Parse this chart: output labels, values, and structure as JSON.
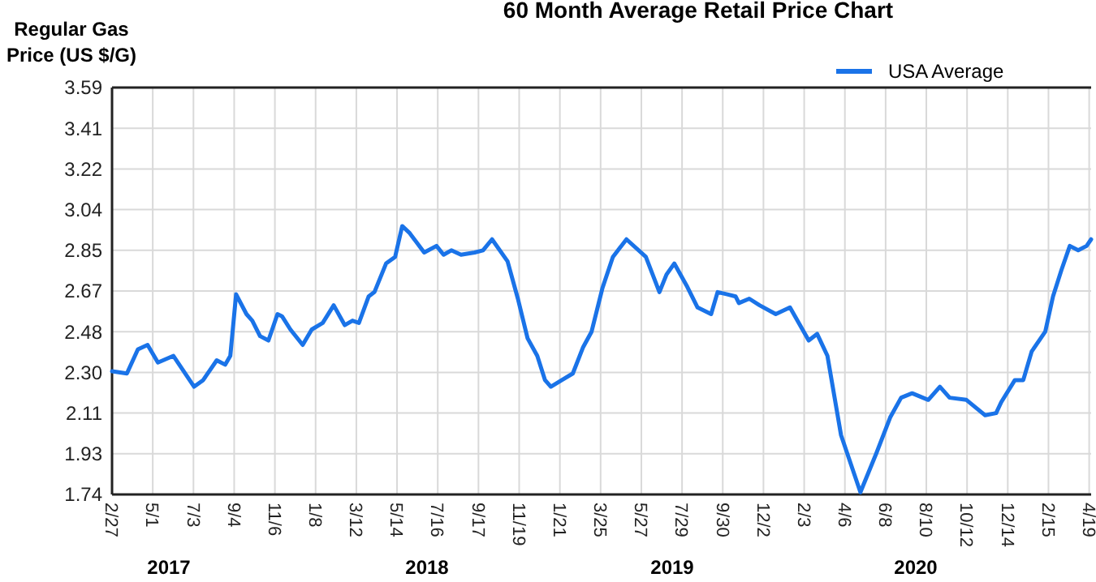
{
  "chart_data": {
    "type": "line",
    "title": "60 Month Average Retail Price Chart",
    "ylabel": "Regular Gas\nPrice (US $/G)",
    "x": [
      "2017-02-27",
      "2017-03-22",
      "2017-04-08",
      "2017-04-23",
      "2017-05-09",
      "2017-06-02",
      "2017-07-04",
      "2017-07-18",
      "2017-08-08",
      "2017-08-21",
      "2017-08-29",
      "2017-09-07",
      "2017-09-23",
      "2017-10-02",
      "2017-10-14",
      "2017-10-27",
      "2017-11-10",
      "2017-11-17",
      "2017-11-30",
      "2017-12-19",
      "2018-01-02",
      "2018-01-19",
      "2018-02-05",
      "2018-02-22",
      "2018-03-06",
      "2018-03-16",
      "2018-03-31",
      "2018-04-09",
      "2018-04-27",
      "2018-05-11",
      "2018-05-22",
      "2018-06-02",
      "2018-06-25",
      "2018-07-14",
      "2018-07-25",
      "2018-08-06",
      "2018-08-21",
      "2018-09-11",
      "2018-09-24",
      "2018-10-08",
      "2018-11-01",
      "2018-11-17",
      "2018-12-02",
      "2018-12-17",
      "2018-12-29",
      "2019-01-07",
      "2019-01-24",
      "2019-02-10",
      "2019-02-26",
      "2019-03-11",
      "2019-03-28",
      "2019-04-13",
      "2019-05-04",
      "2019-06-03",
      "2019-06-24",
      "2019-07-05",
      "2019-07-17",
      "2019-08-05",
      "2019-08-22",
      "2019-09-12",
      "2019-09-22",
      "2019-10-07",
      "2019-10-20",
      "2019-10-25",
      "2019-11-10",
      "2019-11-26",
      "2019-12-21",
      "2020-01-12",
      "2020-02-10",
      "2020-02-23",
      "2020-03-10",
      "2020-03-31",
      "2020-04-30",
      "2020-05-25",
      "2020-06-15",
      "2020-07-02",
      "2020-07-19",
      "2020-08-13",
      "2020-08-31",
      "2020-09-15",
      "2020-10-11",
      "2020-11-09",
      "2020-11-26",
      "2020-12-04",
      "2020-12-25",
      "2021-01-07",
      "2021-01-20",
      "2021-02-10",
      "2021-02-22",
      "2021-03-07",
      "2021-03-20",
      "2021-04-02",
      "2021-04-15",
      "2021-04-22"
    ],
    "series": [
      {
        "name": "USA Average",
        "color": "#1a73e8",
        "values": [
          2.3,
          2.29,
          2.4,
          2.42,
          2.34,
          2.37,
          2.23,
          2.26,
          2.35,
          2.33,
          2.37,
          2.65,
          2.56,
          2.53,
          2.46,
          2.44,
          2.56,
          2.55,
          2.49,
          2.42,
          2.49,
          2.52,
          2.6,
          2.51,
          2.53,
          2.52,
          2.64,
          2.66,
          2.79,
          2.82,
          2.96,
          2.93,
          2.84,
          2.87,
          2.83,
          2.85,
          2.83,
          2.84,
          2.85,
          2.9,
          2.8,
          2.63,
          2.45,
          2.37,
          2.26,
          2.23,
          2.26,
          2.29,
          2.41,
          2.48,
          2.68,
          2.82,
          2.9,
          2.82,
          2.66,
          2.74,
          2.79,
          2.69,
          2.59,
          2.56,
          2.66,
          2.65,
          2.64,
          2.61,
          2.63,
          2.6,
          2.56,
          2.59,
          2.44,
          2.47,
          2.37,
          2.01,
          1.75,
          1.93,
          2.09,
          2.18,
          2.2,
          2.17,
          2.23,
          2.18,
          2.17,
          2.1,
          2.11,
          2.16,
          2.26,
          2.26,
          2.39,
          2.48,
          2.64,
          2.76,
          2.87,
          2.85,
          2.87,
          2.9
        ]
      }
    ],
    "xlim": [
      "2017-02-27",
      "2021-04-22"
    ],
    "xticks": [
      {
        "value": "2017-02-27",
        "label": "2/27"
      },
      {
        "value": "2017-05-01",
        "label": "5/1"
      },
      {
        "value": "2017-07-03",
        "label": "7/3"
      },
      {
        "value": "2017-09-04",
        "label": "9/4"
      },
      {
        "value": "2017-11-06",
        "label": "11/6"
      },
      {
        "value": "2018-01-08",
        "label": "1/8"
      },
      {
        "value": "2018-03-12",
        "label": "3/12"
      },
      {
        "value": "2018-05-14",
        "label": "5/14"
      },
      {
        "value": "2018-07-16",
        "label": "7/16"
      },
      {
        "value": "2018-09-17",
        "label": "9/17"
      },
      {
        "value": "2018-11-19",
        "label": "11/19"
      },
      {
        "value": "2019-01-21",
        "label": "1/21"
      },
      {
        "value": "2019-03-25",
        "label": "3/25"
      },
      {
        "value": "2019-05-27",
        "label": "5/27"
      },
      {
        "value": "2019-07-29",
        "label": "7/29"
      },
      {
        "value": "2019-09-30",
        "label": "9/30"
      },
      {
        "value": "2019-12-02",
        "label": "12/2"
      },
      {
        "value": "2020-02-03",
        "label": "2/3"
      },
      {
        "value": "2020-04-06",
        "label": "4/6"
      },
      {
        "value": "2020-06-08",
        "label": "6/8"
      },
      {
        "value": "2020-08-10",
        "label": "8/10"
      },
      {
        "value": "2020-10-12",
        "label": "10/12"
      },
      {
        "value": "2020-12-14",
        "label": "12/14"
      },
      {
        "value": "2021-02-15",
        "label": "2/15"
      },
      {
        "value": "2021-04-19",
        "label": "4/19"
      }
    ],
    "ylim": [
      1.74,
      3.59
    ],
    "yticks": [
      1.74,
      {
        "value": 1.925,
        "label": "1.93"
      },
      2.11,
      {
        "value": 2.295,
        "label": "2.30"
      },
      2.48,
      {
        "value": 2.665,
        "label": "2.67"
      },
      2.85,
      {
        "value": 3.035,
        "label": "3.04"
      },
      3.22,
      {
        "value": 3.405,
        "label": "3.41"
      },
      3.59
    ],
    "grid": true,
    "legend": "top right",
    "line_style": "solid",
    "annotations": [
      "2017",
      "2018",
      "2019",
      "2020"
    ]
  }
}
